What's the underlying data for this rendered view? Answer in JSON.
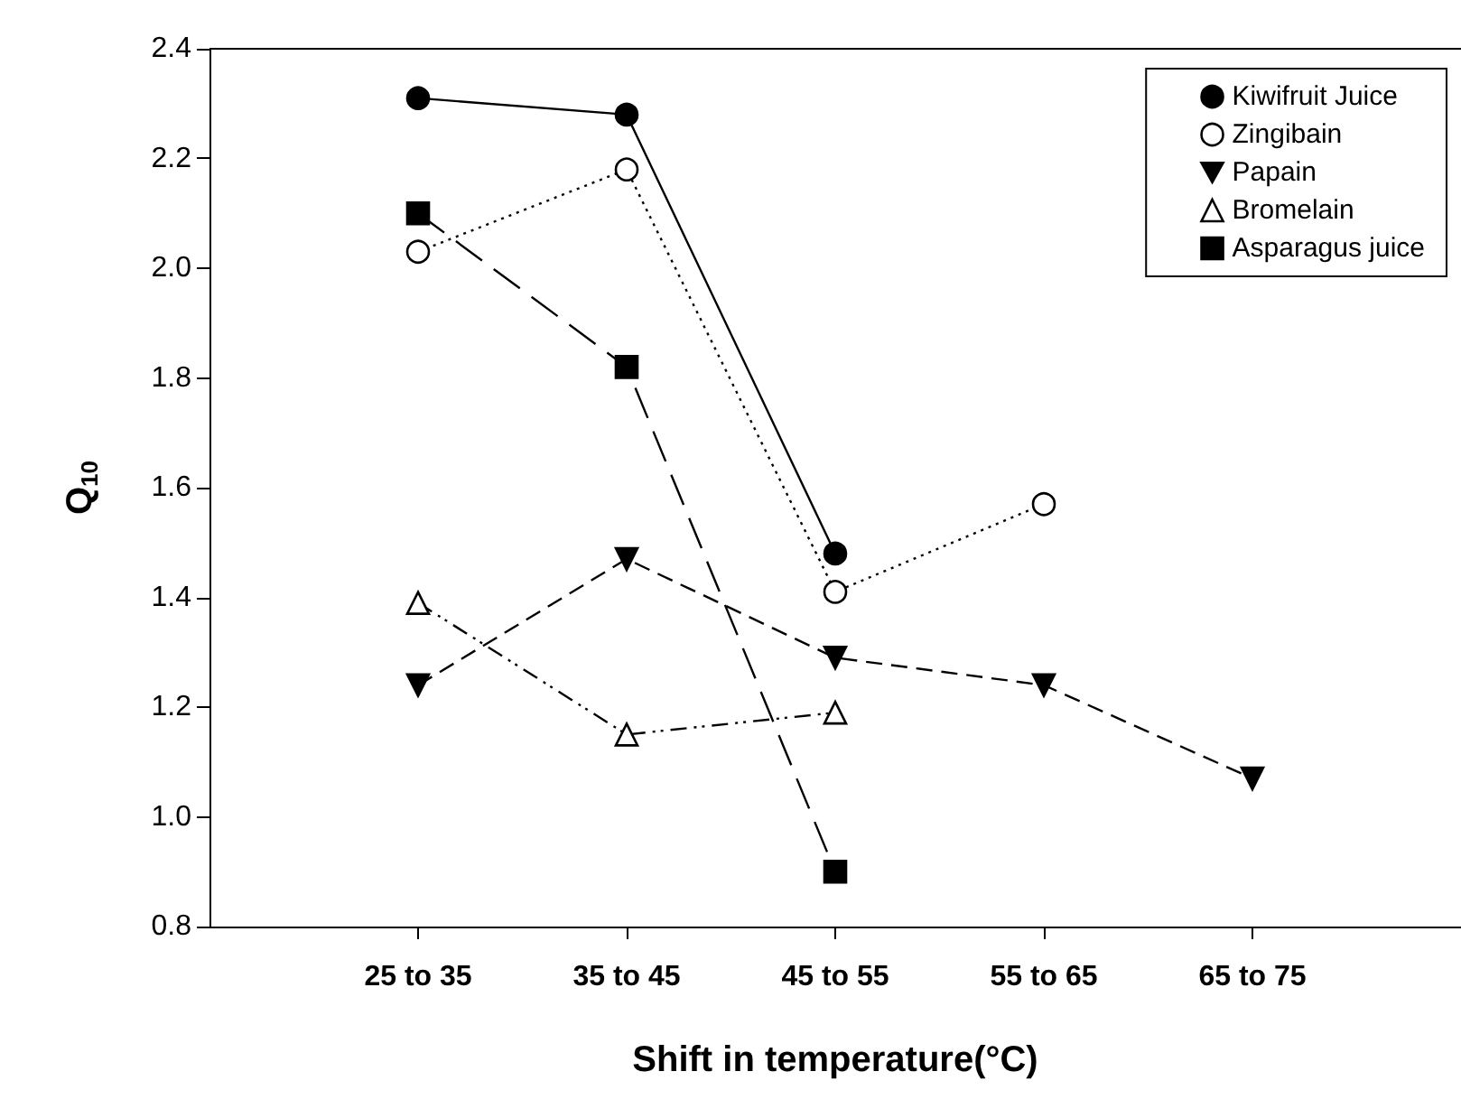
{
  "chart_data": {
    "type": "line",
    "xlabel": "Shift in temperature(°C)",
    "ylabel": "Q$_{10}$",
    "categories": [
      "25 to 35",
      "35 to 45",
      "45 to 55",
      "55 to 65",
      "65 to 75"
    ],
    "ylim": [
      0.8,
      2.4
    ],
    "yticks": [
      0.8,
      {
        "value": 1,
        "label": "1.0"
      },
      1.2,
      1.4,
      1.6,
      1.8,
      {
        "value": 2,
        "label": "2.0"
      },
      2.2,
      2.4
    ],
    "grid": false,
    "legend": "top right",
    "series": [
      {
        "name": "Kiwifruit Juice",
        "color": "#000000",
        "marker": "circle",
        "line_style": "solid",
        "values": [
          2.31,
          2.28,
          1.48,
          null,
          null
        ]
      },
      {
        "name": "Zingibain",
        "color": "#000000",
        "marker": "circle-open",
        "line_style": "dotted",
        "values": [
          2.03,
          2.18,
          1.41,
          1.57,
          null
        ]
      },
      {
        "name": "Papain",
        "color": "#000000",
        "marker": "triangle-down",
        "line_style": "dashed",
        "values": [
          1.24,
          1.47,
          1.29,
          1.24,
          1.07
        ]
      },
      {
        "name": "Bromelain",
        "color": "#000000",
        "marker": "triangle-open",
        "line_style": "dashdot",
        "values": [
          1.39,
          1.15,
          1.19,
          null,
          null
        ]
      },
      {
        "name": "Asparagus juice",
        "color": "#000000",
        "marker": "square",
        "line_style": "longdash",
        "values": [
          2.1,
          1.82,
          0.9,
          null,
          null
        ]
      }
    ]
  }
}
